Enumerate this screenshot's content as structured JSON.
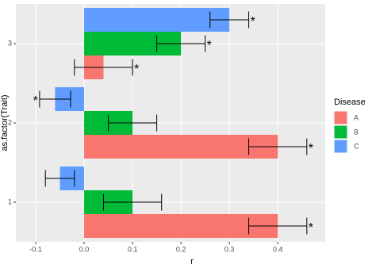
{
  "chart_data": {
    "type": "bar",
    "orientation": "horizontal",
    "x_label": "r",
    "y_label": "as.factor(Trait)",
    "categories": [
      "1",
      "2",
      "3"
    ],
    "legend_title": "Disease",
    "series": [
      {
        "name": "A",
        "color": "#F8766D",
        "values": [
          0.4,
          0.4,
          0.04
        ],
        "errors": [
          0.06,
          0.06,
          0.06
        ],
        "labels": [
          "*",
          "*",
          "*"
        ]
      },
      {
        "name": "B",
        "color": "#00BA38",
        "values": [
          0.1,
          0.1,
          0.2
        ],
        "errors": [
          0.06,
          0.05,
          0.05
        ],
        "labels": [
          null,
          null,
          "*"
        ]
      },
      {
        "name": "C",
        "color": "#619CFF",
        "values": [
          -0.05,
          -0.06,
          0.3
        ],
        "errors": [
          0.03,
          0.032,
          0.04
        ],
        "labels": [
          null,
          "*",
          "*"
        ]
      }
    ],
    "xlim": [
      -0.141,
      0.498
    ],
    "xticks": [
      -0.1,
      {
        "value": 0,
        "label": "0.0"
      },
      0.1,
      0.2,
      0.3,
      0.4
    ],
    "grid": true
  }
}
